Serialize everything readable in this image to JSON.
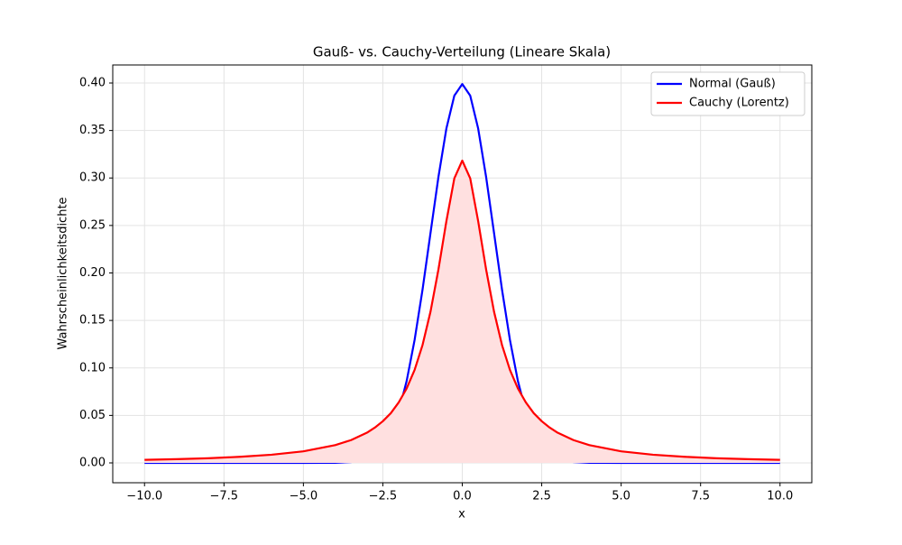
{
  "chart_data": {
    "type": "line",
    "title": "Gauß- vs. Cauchy-Verteilung (Lineare Skala)",
    "xlabel": "x",
    "ylabel": "Wahrscheinlichkeitsdichte",
    "x": [
      -10,
      -9,
      -8,
      -7,
      -6,
      -5,
      -4,
      -3.5,
      -3,
      -2.75,
      -2.5,
      -2.25,
      -2,
      -1.75,
      -1.5,
      -1.25,
      -1,
      -0.75,
      -0.5,
      -0.25,
      0,
      0.25,
      0.5,
      0.75,
      1,
      1.25,
      1.5,
      1.75,
      2,
      2.25,
      2.5,
      2.75,
      3,
      3.5,
      4,
      5,
      6,
      7,
      8,
      9,
      10
    ],
    "series": [
      {
        "name": "Normal (Gauß)",
        "color": "#0000ff",
        "values": [
          0,
          0,
          0,
          0,
          0,
          0,
          0.0001,
          0.0009,
          0.0044,
          0.0091,
          0.0175,
          0.0317,
          0.054,
          0.0863,
          0.1295,
          0.1826,
          0.242,
          0.3011,
          0.3521,
          0.3867,
          0.3989,
          0.3867,
          0.3521,
          0.3011,
          0.242,
          0.1826,
          0.1295,
          0.0863,
          0.054,
          0.0317,
          0.0175,
          0.0091,
          0.0044,
          0.0009,
          0.0001,
          0,
          0,
          0,
          0,
          0,
          0
        ]
      },
      {
        "name": "Cauchy (Lorentz)",
        "color": "#ff0000",
        "fill": "#ffe0e0",
        "values": [
          0.0032,
          0.0039,
          0.0049,
          0.0064,
          0.0086,
          0.0122,
          0.0187,
          0.024,
          0.0318,
          0.0372,
          0.0439,
          0.0523,
          0.0637,
          0.0784,
          0.0979,
          0.1242,
          0.1592,
          0.2037,
          0.2546,
          0.2996,
          0.3183,
          0.2996,
          0.2546,
          0.2037,
          0.1592,
          0.1242,
          0.0979,
          0.0784,
          0.0637,
          0.0523,
          0.0439,
          0.0372,
          0.0318,
          0.024,
          0.0187,
          0.0122,
          0.0086,
          0.0064,
          0.0049,
          0.0039,
          0.0032
        ]
      }
    ],
    "xlim": [
      -11,
      11
    ],
    "ylim": [
      -0.0209,
      0.419
    ],
    "xticks": [
      {
        "value": -10,
        "label": "−10.0"
      },
      {
        "value": -7.5,
        "label": "−7.5"
      },
      {
        "value": -5,
        "label": "−5.0"
      },
      {
        "value": -2.5,
        "label": "−2.5"
      },
      {
        "value": 0,
        "label": "0.0"
      },
      {
        "value": 2.5,
        "label": "2.5"
      },
      {
        "value": 5,
        "label": "5.0"
      },
      {
        "value": 7.5,
        "label": "7.5"
      },
      {
        "value": 10,
        "label": "10.0"
      }
    ],
    "yticks": [
      {
        "value": 0,
        "label": "0.00"
      },
      {
        "value": 0.05,
        "label": "0.05"
      },
      {
        "value": 0.1,
        "label": "0.10"
      },
      {
        "value": 0.15,
        "label": "0.15"
      },
      {
        "value": 0.2,
        "label": "0.20"
      },
      {
        "value": 0.25,
        "label": "0.25"
      },
      {
        "value": 0.3,
        "label": "0.30"
      },
      {
        "value": 0.35,
        "label": "0.35"
      },
      {
        "value": 0.4,
        "label": "0.40"
      }
    ],
    "grid": true,
    "legend": "upper right"
  }
}
